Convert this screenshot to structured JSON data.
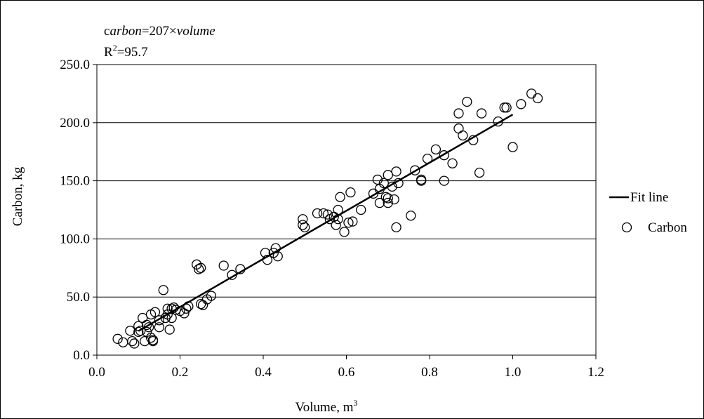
{
  "chart_data": {
    "type": "scatter",
    "xlabel": "Volume, m",
    "xlabel_superscript": "3",
    "ylabel": "Carbon, kg",
    "xlim": [
      0,
      1.2
    ],
    "ylim": [
      0,
      250
    ],
    "x_ticks": [
      "0.0",
      "0.2",
      "0.4",
      "0.6",
      "0.8",
      "1.0",
      "1.2"
    ],
    "y_ticks": [
      "0.0",
      "50.0",
      "100.0",
      "150.0",
      "200.0",
      "250.0"
    ],
    "grid": "horizontal",
    "legend_position": "right",
    "annotation": {
      "equation_prefix": "c",
      "equation_var1": "arbon",
      "equation_mid": "=207×",
      "equation_var2": "volume",
      "r2_prefix": "R",
      "r2_sup": "2",
      "r2_value": "=95.7"
    },
    "series": [
      {
        "name": "Fit line",
        "kind": "line",
        "color": "#000000",
        "points": [
          [
            0.1,
            20.7
          ],
          [
            1.0,
            207
          ]
        ]
      },
      {
        "name": "Carbon",
        "kind": "scatter",
        "marker": "open-circle",
        "color": "#000000",
        "points": [
          [
            0.05,
            14
          ],
          [
            0.063,
            11
          ],
          [
            0.08,
            21
          ],
          [
            0.085,
            12
          ],
          [
            0.09,
            10
          ],
          [
            0.1,
            25
          ],
          [
            0.1,
            20
          ],
          [
            0.105,
            21
          ],
          [
            0.11,
            32
          ],
          [
            0.115,
            12
          ],
          [
            0.12,
            20
          ],
          [
            0.12,
            26
          ],
          [
            0.125,
            24
          ],
          [
            0.13,
            35
          ],
          [
            0.13,
            15
          ],
          [
            0.135,
            12
          ],
          [
            0.135,
            13
          ],
          [
            0.14,
            37
          ],
          [
            0.15,
            30
          ],
          [
            0.15,
            24
          ],
          [
            0.16,
            56
          ],
          [
            0.165,
            32
          ],
          [
            0.17,
            35
          ],
          [
            0.17,
            40
          ],
          [
            0.175,
            22
          ],
          [
            0.18,
            32
          ],
          [
            0.18,
            40
          ],
          [
            0.185,
            41
          ],
          [
            0.19,
            39
          ],
          [
            0.2,
            38
          ],
          [
            0.21,
            36
          ],
          [
            0.215,
            40
          ],
          [
            0.22,
            42
          ],
          [
            0.24,
            78
          ],
          [
            0.245,
            74
          ],
          [
            0.25,
            75
          ],
          [
            0.25,
            44
          ],
          [
            0.255,
            43
          ],
          [
            0.265,
            48
          ],
          [
            0.275,
            51
          ],
          [
            0.305,
            77
          ],
          [
            0.325,
            69
          ],
          [
            0.345,
            74
          ],
          [
            0.405,
            88
          ],
          [
            0.41,
            82
          ],
          [
            0.425,
            88
          ],
          [
            0.43,
            92
          ],
          [
            0.435,
            85
          ],
          [
            0.495,
            112
          ],
          [
            0.495,
            117
          ],
          [
            0.5,
            110
          ],
          [
            0.53,
            122
          ],
          [
            0.545,
            122
          ],
          [
            0.555,
            121
          ],
          [
            0.56,
            117
          ],
          [
            0.57,
            119
          ],
          [
            0.575,
            112
          ],
          [
            0.58,
            125
          ],
          [
            0.58,
            117
          ],
          [
            0.585,
            136
          ],
          [
            0.595,
            106
          ],
          [
            0.605,
            114
          ],
          [
            0.61,
            140
          ],
          [
            0.615,
            115
          ],
          [
            0.635,
            125
          ],
          [
            0.665,
            139
          ],
          [
            0.675,
            151
          ],
          [
            0.68,
            131
          ],
          [
            0.68,
            143
          ],
          [
            0.69,
            148
          ],
          [
            0.695,
            136
          ],
          [
            0.7,
            131
          ],
          [
            0.7,
            135
          ],
          [
            0.7,
            155
          ],
          [
            0.71,
            145
          ],
          [
            0.715,
            134
          ],
          [
            0.72,
            158
          ],
          [
            0.72,
            110
          ],
          [
            0.725,
            148
          ],
          [
            0.755,
            120
          ],
          [
            0.765,
            159
          ],
          [
            0.78,
            151
          ],
          [
            0.78,
            150
          ],
          [
            0.795,
            169
          ],
          [
            0.815,
            177
          ],
          [
            0.835,
            172
          ],
          [
            0.835,
            150
          ],
          [
            0.855,
            165
          ],
          [
            0.87,
            195
          ],
          [
            0.87,
            208
          ],
          [
            0.88,
            189
          ],
          [
            0.89,
            218
          ],
          [
            0.905,
            185
          ],
          [
            0.92,
            157
          ],
          [
            0.925,
            208
          ],
          [
            0.965,
            201
          ],
          [
            0.98,
            213
          ],
          [
            0.985,
            213
          ],
          [
            1.0,
            179
          ],
          [
            1.02,
            216
          ],
          [
            1.045,
            225
          ],
          [
            1.06,
            221
          ]
        ]
      }
    ]
  }
}
